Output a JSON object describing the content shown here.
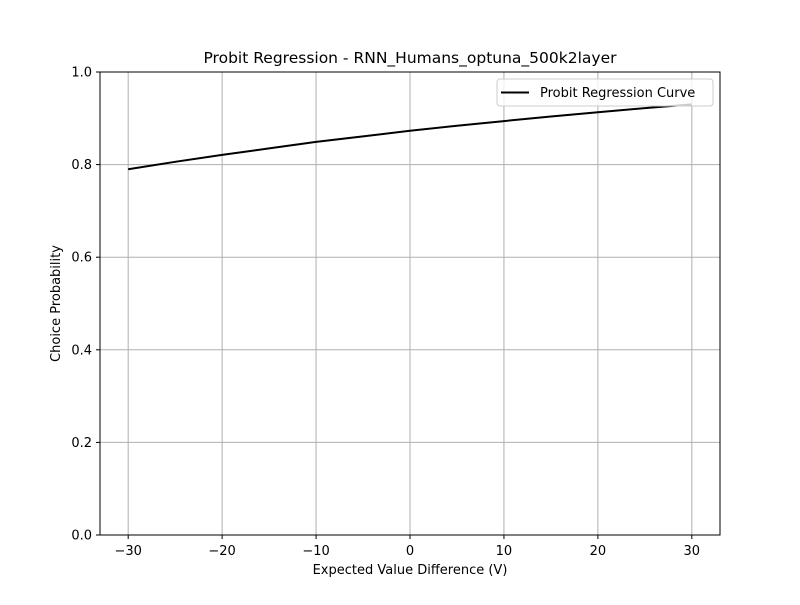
{
  "chart_data": {
    "type": "line",
    "title": "Probit Regression - RNN_Humans_optuna_500k2layer",
    "xlabel": "Expected Value Difference (V)",
    "ylabel": "Choice Probability",
    "xlim": [
      -33,
      33
    ],
    "ylim": [
      0.0,
      1.0
    ],
    "xticks": [
      -30,
      -20,
      -10,
      0,
      10,
      20,
      30
    ],
    "xtick_labels": [
      "−30",
      "−20",
      "−10",
      "0",
      "10",
      "20",
      "30"
    ],
    "yticks": [
      0.0,
      0.2,
      0.4,
      0.6,
      0.8,
      1.0
    ],
    "ytick_labels": [
      "0.0",
      "0.2",
      "0.4",
      "0.6",
      "0.8",
      "1.0"
    ],
    "grid": true,
    "legend_position": "top-right",
    "series": [
      {
        "name": "Probit Regression Curve",
        "color": "#000000",
        "x": [
          -30,
          -25,
          -20,
          -15,
          -10,
          -5,
          0,
          5,
          10,
          15,
          20,
          25,
          30
        ],
        "y": [
          0.79,
          0.806,
          0.821,
          0.835,
          0.849,
          0.861,
          0.873,
          0.884,
          0.894,
          0.904,
          0.913,
          0.922,
          0.93
        ]
      }
    ]
  }
}
